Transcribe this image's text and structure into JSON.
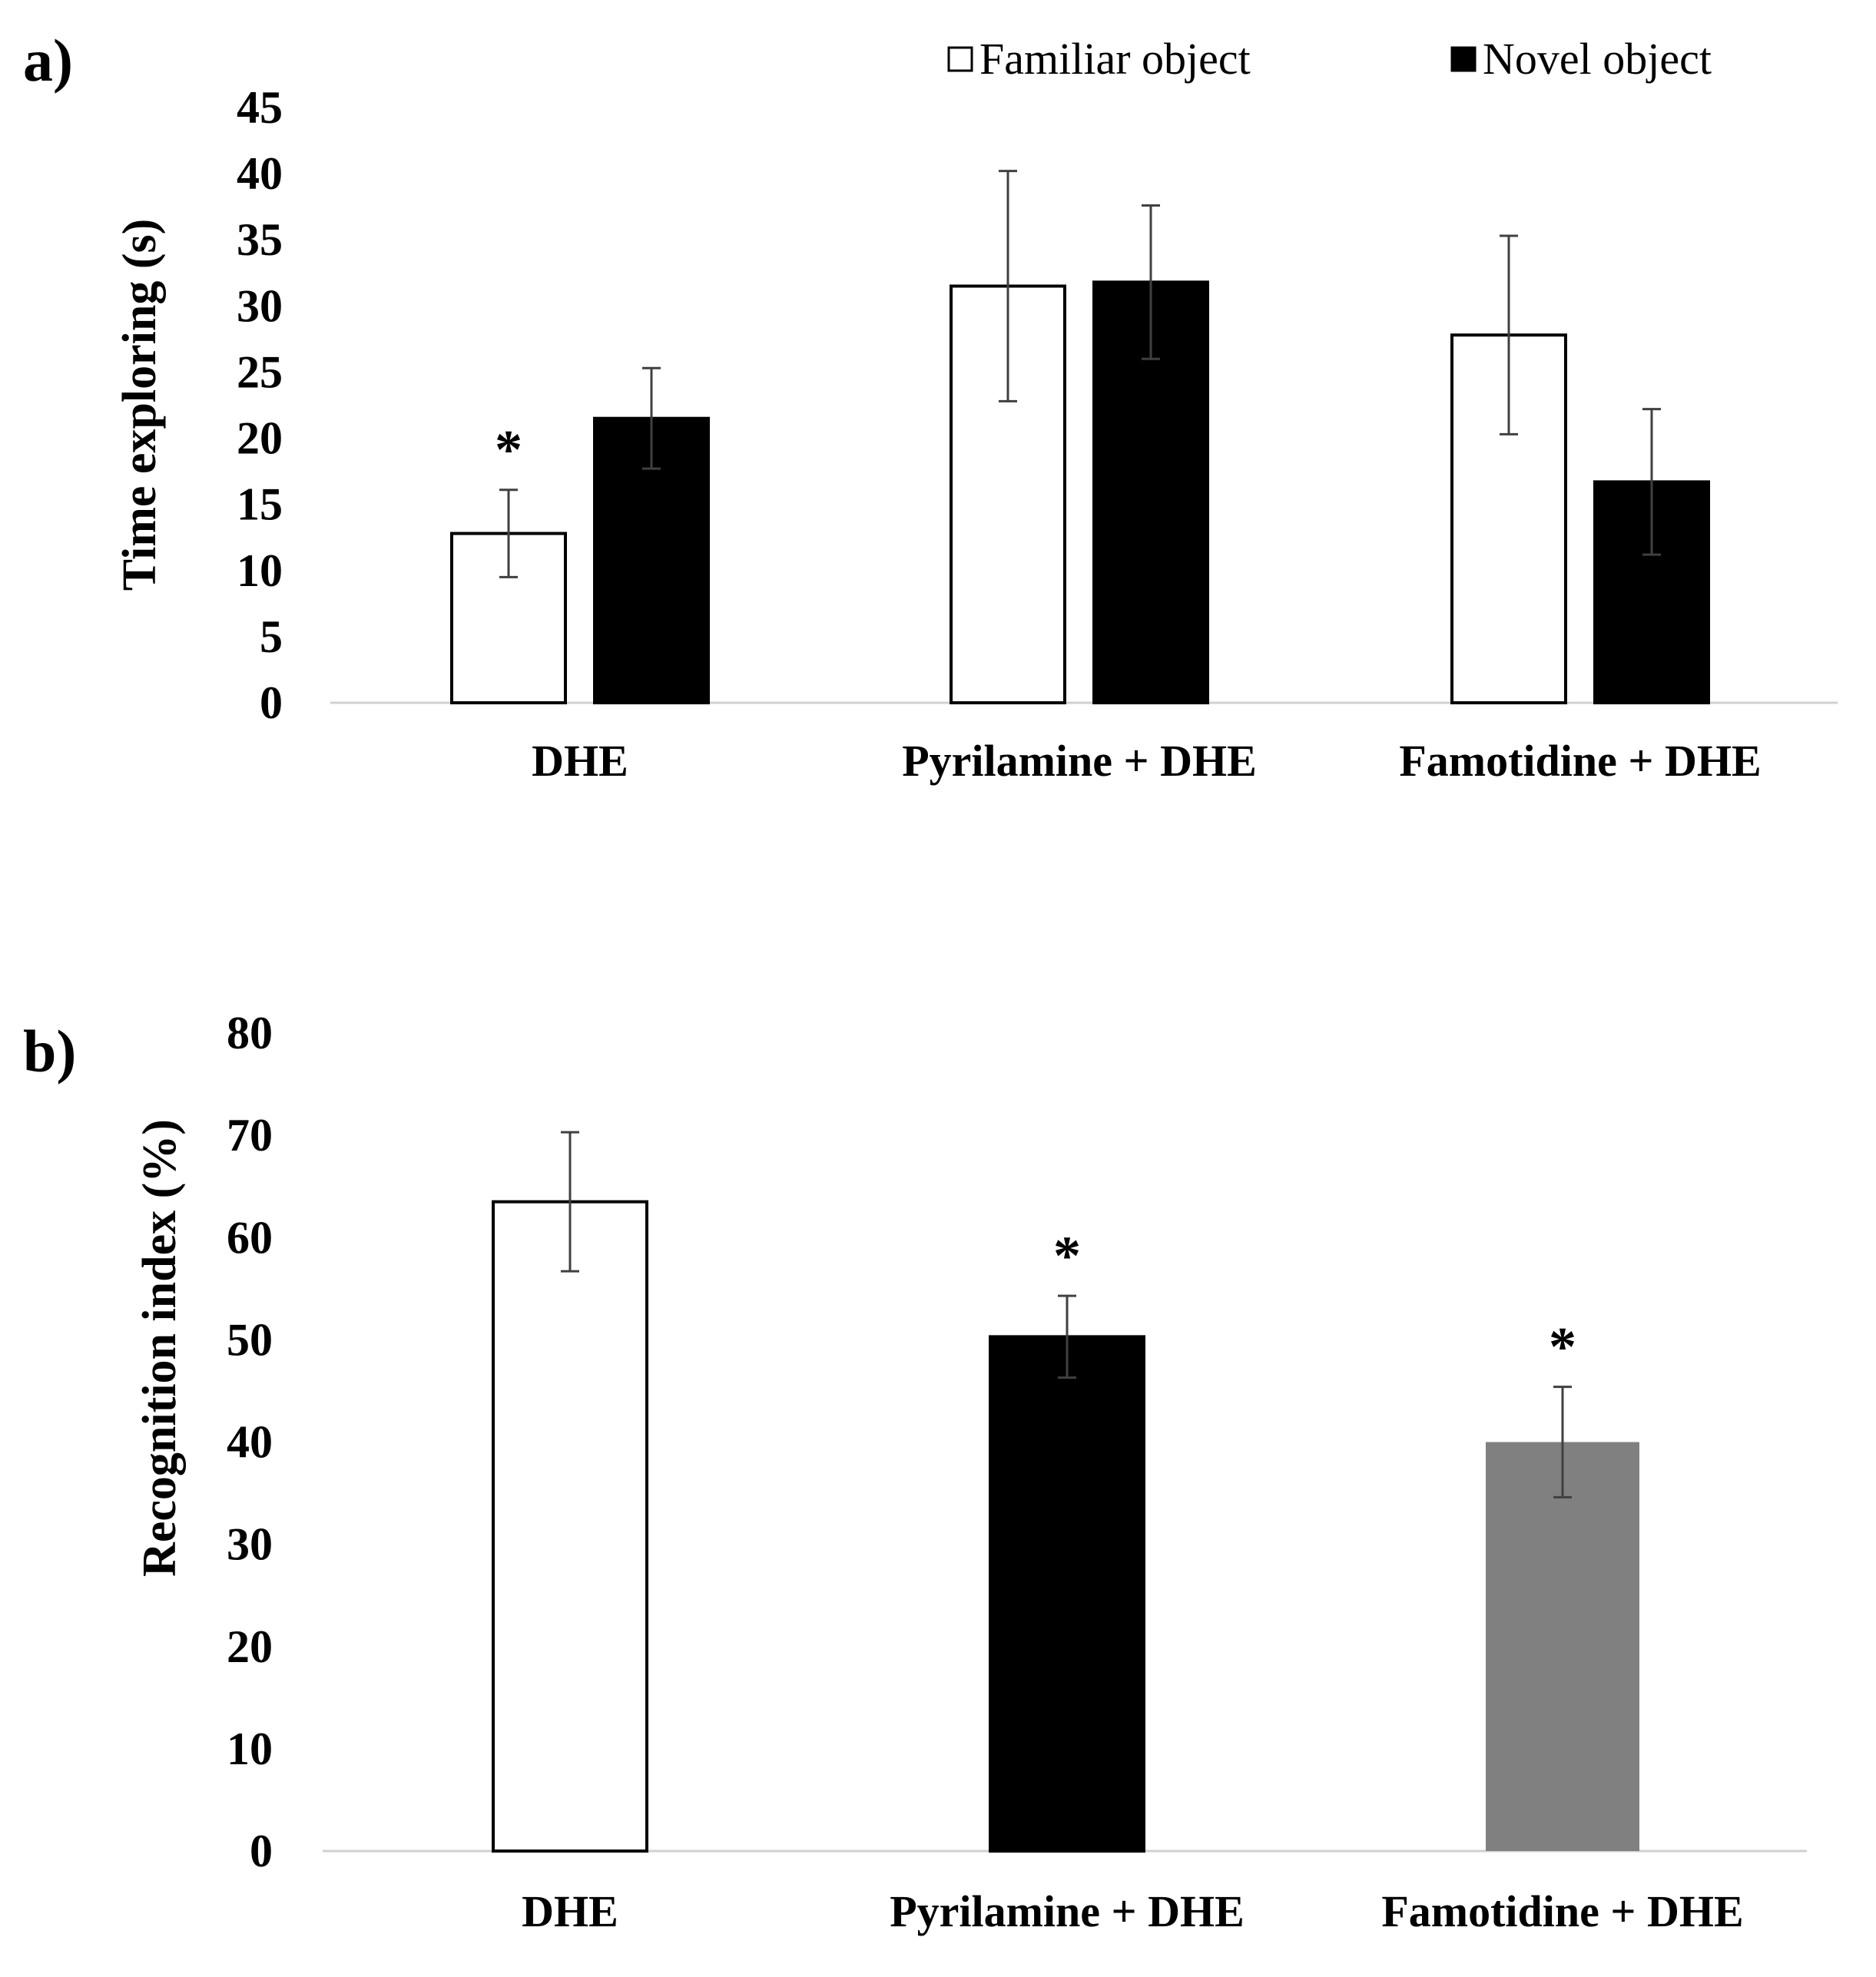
{
  "chart_data": [
    {
      "type": "bar",
      "panel_label": "a)",
      "categories": [
        "DHE",
        "Pyrilamine + DHE",
        "Famotidine + DHE"
      ],
      "series": [
        {
          "name": "Familiar object",
          "fill": "#ffffff",
          "stroke": "#000000",
          "values": [
            12.8,
            31.5,
            27.8
          ],
          "errors": [
            3.3,
            8.7,
            7.5
          ],
          "annotations": [
            "*",
            "",
            ""
          ]
        },
        {
          "name": "Novel object",
          "fill": "#000000",
          "stroke": "#000000",
          "values": [
            21.5,
            31.8,
            16.7
          ],
          "errors": [
            3.8,
            5.8,
            5.5
          ],
          "annotations": [
            "",
            "",
            ""
          ]
        }
      ],
      "ylabel": "Time exploring (s)",
      "xlabel": "",
      "ylim": [
        0,
        45
      ],
      "yticks": [
        0,
        5,
        10,
        15,
        20,
        25,
        30,
        35,
        40,
        45
      ],
      "legend_position": "top"
    },
    {
      "type": "bar",
      "panel_label": "b)",
      "categories": [
        "DHE",
        "Pyrilamine + DHE",
        "Famotidine + DHE"
      ],
      "values": [
        63.5,
        50.3,
        40
      ],
      "errors": [
        6.8,
        4,
        5.4
      ],
      "fills": [
        "#ffffff",
        "#000000",
        "#808080"
      ],
      "annotations": [
        "",
        "*",
        "*"
      ],
      "ylabel": "Recognition index (%)",
      "xlabel": "",
      "ylim": [
        0,
        80
      ],
      "yticks": [
        0,
        10,
        20,
        30,
        40,
        50,
        60,
        70,
        80
      ]
    }
  ]
}
